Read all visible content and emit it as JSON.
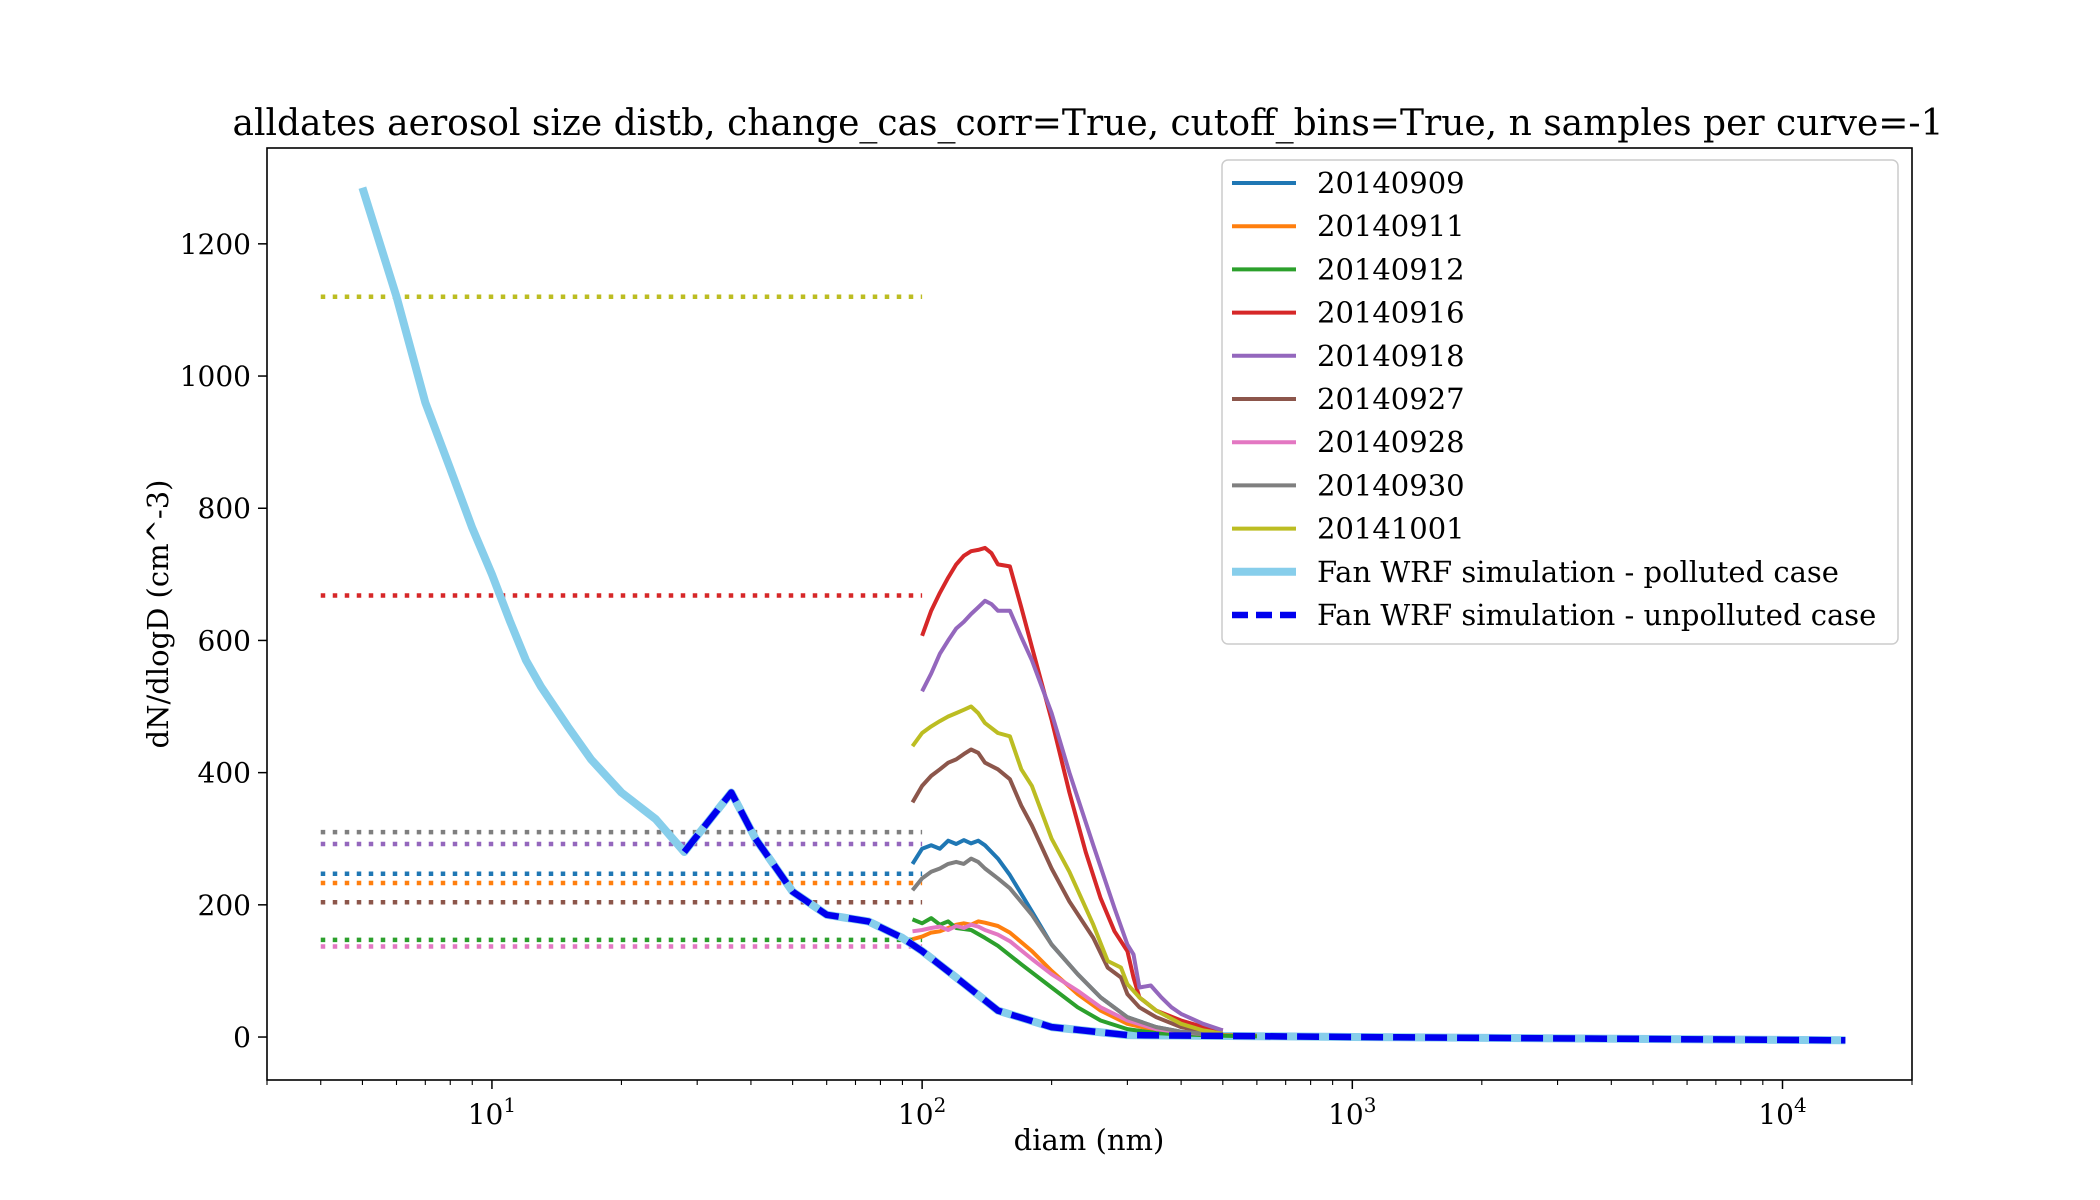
{
  "chart_data": {
    "type": "line",
    "title": "alldates aerosol size distb, change_cas_corr=True, cutoff_bins=True, n samples per curve=-1",
    "xlabel": "diam (nm)",
    "ylabel": "dN/dlogD (cm^-3)",
    "xscale": "log",
    "xlim": [
      3,
      20000
    ],
    "ylim": [
      -65,
      1345
    ],
    "grid": false,
    "legend_position": "top-right",
    "x_ticks": [
      {
        "value": 10,
        "base": "10",
        "exp": "1"
      },
      {
        "value": 100,
        "base": "10",
        "exp": "2"
      },
      {
        "value": 1000,
        "base": "10",
        "exp": "3"
      },
      {
        "value": 10000,
        "base": "10",
        "exp": "4"
      }
    ],
    "y_ticks": [
      0,
      200,
      400,
      600,
      800,
      1000,
      1200
    ],
    "dotted_levels": [
      {
        "name": "20141001",
        "y": 1120,
        "x": [
          4,
          100
        ]
      },
      {
        "name": "20140916",
        "y": 668,
        "x": [
          4,
          100
        ]
      },
      {
        "name": "20140930",
        "y": 310,
        "x": [
          4,
          100
        ]
      },
      {
        "name": "20140918",
        "y": 292,
        "x": [
          4,
          100
        ]
      },
      {
        "name": "20140909",
        "y": 247,
        "x": [
          4,
          100
        ]
      },
      {
        "name": "20140911",
        "y": 233,
        "x": [
          4,
          100
        ]
      },
      {
        "name": "20140927",
        "y": 204,
        "x": [
          4,
          100
        ]
      },
      {
        "name": "20140912",
        "y": 147,
        "x": [
          4,
          100
        ]
      },
      {
        "name": "20140928",
        "y": 137,
        "x": [
          4,
          100
        ]
      }
    ],
    "series": [
      {
        "name": "20140909",
        "color": "#1f77b4",
        "style": "solid",
        "x": [
          95,
          100,
          105,
          110,
          115,
          120,
          125,
          130,
          135,
          140,
          150,
          160,
          180,
          200,
          230,
          260,
          300,
          350,
          400,
          450,
          500,
          600
        ],
        "y": [
          262,
          285,
          290,
          285,
          297,
          292,
          298,
          293,
          297,
          290,
          270,
          245,
          190,
          140,
          95,
          60,
          30,
          15,
          8,
          5,
          3,
          2
        ]
      },
      {
        "name": "20140911",
        "color": "#ff7f0e",
        "style": "solid",
        "x": [
          95,
          100,
          105,
          110,
          115,
          120,
          125,
          130,
          135,
          140,
          150,
          160,
          180,
          200,
          230,
          260,
          300,
          350,
          400,
          450,
          500,
          600
        ],
        "y": [
          148,
          152,
          158,
          160,
          165,
          170,
          172,
          170,
          175,
          173,
          168,
          158,
          130,
          100,
          65,
          40,
          20,
          10,
          6,
          4,
          3,
          2
        ]
      },
      {
        "name": "20140912",
        "color": "#2ca02c",
        "style": "solid",
        "x": [
          95,
          100,
          105,
          110,
          115,
          120,
          130,
          140,
          150,
          170,
          200,
          230,
          260,
          300,
          350,
          400,
          450,
          500,
          600
        ],
        "y": [
          178,
          172,
          180,
          170,
          175,
          165,
          162,
          150,
          138,
          110,
          75,
          45,
          25,
          12,
          6,
          4,
          3,
          2,
          1
        ]
      },
      {
        "name": "20140916",
        "color": "#d62728",
        "style": "solid",
        "x": [
          100,
          105,
          110,
          115,
          120,
          125,
          130,
          135,
          140,
          145,
          150,
          160,
          170,
          180,
          200,
          220,
          240,
          260,
          280,
          300,
          310,
          320,
          350,
          400,
          450,
          500
        ],
        "y": [
          607,
          645,
          672,
          695,
          715,
          728,
          735,
          737,
          740,
          732,
          715,
          712,
          650,
          590,
          480,
          370,
          280,
          210,
          160,
          130,
          90,
          60,
          40,
          25,
          15,
          10
        ]
      },
      {
        "name": "20140918",
        "color": "#9467bd",
        "style": "solid",
        "x": [
          100,
          105,
          110,
          115,
          120,
          125,
          130,
          135,
          140,
          145,
          150,
          160,
          170,
          180,
          200,
          220,
          250,
          280,
          300,
          310,
          320,
          340,
          360,
          380,
          400,
          450,
          500
        ],
        "y": [
          523,
          550,
          580,
          600,
          618,
          628,
          640,
          650,
          660,
          655,
          645,
          645,
          605,
          570,
          490,
          400,
          290,
          195,
          140,
          125,
          75,
          78,
          60,
          45,
          35,
          20,
          10
        ]
      },
      {
        "name": "20140927",
        "color": "#8c564b",
        "style": "solid",
        "x": [
          95,
          100,
          105,
          110,
          115,
          120,
          125,
          130,
          135,
          140,
          150,
          160,
          170,
          180,
          200,
          220,
          250,
          270,
          290,
          300,
          320,
          350,
          400,
          450,
          500
        ],
        "y": [
          355,
          380,
          395,
          405,
          415,
          420,
          428,
          435,
          430,
          415,
          405,
          390,
          350,
          320,
          255,
          205,
          150,
          105,
          90,
          65,
          45,
          30,
          15,
          8,
          5
        ]
      },
      {
        "name": "20140928",
        "color": "#e377c2",
        "style": "solid",
        "x": [
          95,
          100,
          105,
          110,
          115,
          120,
          125,
          130,
          135,
          140,
          150,
          160,
          180,
          200,
          230,
          260,
          300,
          350,
          400,
          500
        ],
        "y": [
          160,
          162,
          165,
          167,
          162,
          168,
          165,
          170,
          167,
          162,
          155,
          145,
          118,
          95,
          70,
          45,
          25,
          12,
          7,
          3
        ]
      },
      {
        "name": "20140930",
        "color": "#7f7f7f",
        "style": "solid",
        "x": [
          95,
          100,
          105,
          110,
          115,
          120,
          125,
          130,
          135,
          140,
          150,
          160,
          180,
          200,
          230,
          260,
          300,
          350,
          400,
          500
        ],
        "y": [
          222,
          240,
          250,
          255,
          262,
          265,
          262,
          270,
          265,
          255,
          240,
          225,
          185,
          140,
          95,
          60,
          30,
          15,
          8,
          3
        ]
      },
      {
        "name": "20141001",
        "color": "#bcbd22",
        "style": "solid",
        "x": [
          95,
          100,
          105,
          110,
          115,
          120,
          125,
          130,
          135,
          140,
          150,
          160,
          170,
          180,
          200,
          220,
          250,
          270,
          290,
          300,
          320,
          350,
          400,
          450,
          500
        ],
        "y": [
          440,
          460,
          470,
          478,
          485,
          490,
          495,
          500,
          490,
          475,
          460,
          455,
          405,
          380,
          300,
          250,
          170,
          115,
          105,
          80,
          60,
          40,
          20,
          10,
          5
        ]
      },
      {
        "name": "Fan WRF simulation - polluted case",
        "color": "#87ceeb",
        "style": "thick",
        "x": [
          5,
          6,
          7,
          8,
          9,
          10,
          11,
          12,
          13,
          15,
          17,
          20,
          24,
          28,
          36,
          41,
          50,
          60,
          75,
          90,
          100,
          120,
          150,
          200,
          300,
          1000,
          14000
        ],
        "y": [
          1285,
          1120,
          960,
          860,
          770,
          700,
          630,
          570,
          530,
          470,
          420,
          370,
          330,
          280,
          370,
          300,
          220,
          185,
          175,
          150,
          130,
          90,
          40,
          15,
          3,
          0,
          -5
        ]
      },
      {
        "name": "Fan WRF simulation - unpolluted case",
        "color": "#0000ee",
        "style": "dashed",
        "x": [
          28,
          36,
          41,
          50,
          60,
          75,
          90,
          100,
          120,
          150,
          200,
          300,
          1000,
          14000
        ],
        "y": [
          280,
          370,
          300,
          220,
          185,
          175,
          150,
          130,
          90,
          40,
          15,
          3,
          0,
          -5
        ]
      }
    ]
  }
}
